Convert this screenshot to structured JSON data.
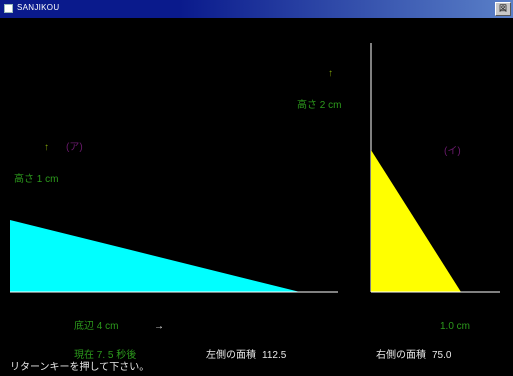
{
  "window": {
    "title": "SANJIKOU",
    "close_label": "図"
  },
  "colors": {
    "left_triangle": "#00ffff",
    "right_triangle": "#ffff00",
    "axis": "#ffffff",
    "label_green": "#2c9a1c",
    "label_purple": "#6b1a6e"
  },
  "left_figure": {
    "arrow_up": "↑",
    "tag": "(ア)",
    "height_label": "高さ 1 cm",
    "base_label": "底辺 4 cm",
    "arrow_right": "→"
  },
  "right_figure": {
    "arrow_up": "↑",
    "height_label": "高さ 2 cm",
    "tag": "(イ)",
    "base_label": "1.0 cm"
  },
  "status": {
    "elapsed": "現在 7. 5 秒後",
    "left_area_label": "左側の面積",
    "left_area_value": "112.5",
    "right_area_label": "右側の面積",
    "right_area_value": "75.0",
    "prompt": "リターンキーを押して下さい。"
  }
}
